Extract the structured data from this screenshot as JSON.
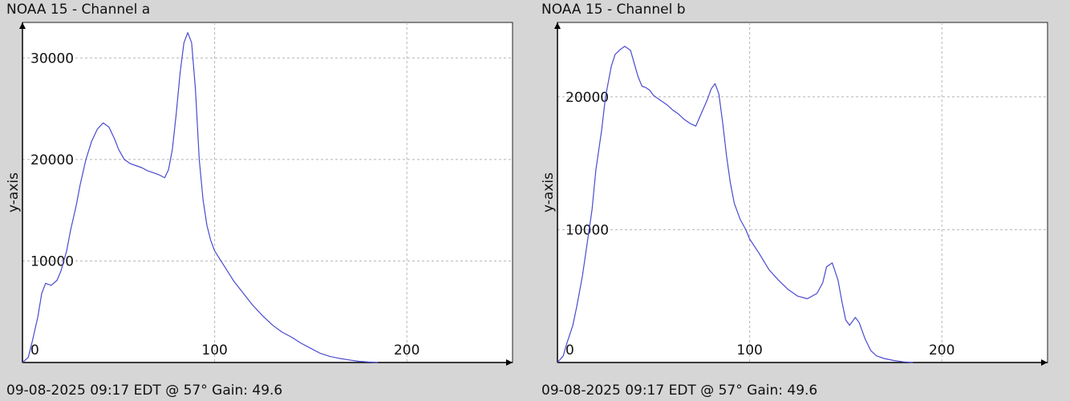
{
  "chart_data": [
    {
      "type": "line",
      "title": "NOAA 15 - Channel a",
      "footer": "09-08-2025 09:17 EDT @ 57° Gain: 49.6",
      "ylabel": "y-axis",
      "xlabel": "",
      "xlim": [
        0,
        255
      ],
      "ylim": [
        0,
        33500
      ],
      "xticks": [
        0,
        100,
        200
      ],
      "xtick_labels": [
        "0",
        "100",
        "200"
      ],
      "yticks": [
        10000,
        20000,
        30000
      ],
      "ytick_labels": [
        "10000",
        "20000",
        "30000"
      ],
      "grid": true,
      "line_color": "#4a4ad0",
      "series": [
        {
          "x": [
            0,
            3,
            5,
            8,
            10,
            12,
            15,
            18,
            20,
            23,
            25,
            28,
            30,
            33,
            36,
            39,
            42,
            45,
            48,
            50,
            53,
            56,
            59,
            62,
            65,
            68,
            71,
            74,
            76,
            78,
            80,
            82,
            84,
            86,
            88,
            90,
            92,
            94,
            96,
            98,
            100,
            105,
            110,
            115,
            120,
            125,
            130,
            135,
            140,
            145,
            150,
            155,
            160,
            165,
            170,
            175,
            180,
            185
          ],
          "y": [
            0,
            500,
            2000,
            4500,
            6800,
            7800,
            7600,
            8100,
            9000,
            11000,
            13000,
            15500,
            17500,
            20000,
            21800,
            23000,
            23600,
            23200,
            22000,
            21000,
            20000,
            19600,
            19400,
            19200,
            18900,
            18700,
            18500,
            18200,
            19000,
            21000,
            24500,
            28500,
            31500,
            32500,
            31500,
            27000,
            20000,
            16000,
            13500,
            12000,
            11000,
            9500,
            8000,
            6800,
            5600,
            4600,
            3700,
            3000,
            2500,
            1900,
            1400,
            900,
            600,
            400,
            250,
            120,
            50,
            0
          ]
        }
      ]
    },
    {
      "type": "line",
      "title": "NOAA 15 - Channel b",
      "footer": "09-08-2025 09:17 EDT @ 57° Gain: 49.6",
      "ylabel": "y-axis",
      "xlabel": "",
      "xlim": [
        0,
        255
      ],
      "ylim": [
        0,
        25600
      ],
      "xticks": [
        0,
        100,
        200
      ],
      "xtick_labels": [
        "0",
        "100",
        "200"
      ],
      "yticks": [
        10000,
        20000
      ],
      "ytick_labels": [
        "10000",
        "20000"
      ],
      "grid": true,
      "line_color": "#4a4ad0",
      "series": [
        {
          "x": [
            0,
            3,
            5,
            8,
            10,
            13,
            15,
            18,
            20,
            23,
            25,
            28,
            30,
            33,
            35,
            38,
            40,
            42,
            44,
            46,
            48,
            50,
            52,
            54,
            57,
            60,
            63,
            66,
            69,
            72,
            75,
            78,
            80,
            82,
            84,
            86,
            88,
            90,
            92,
            95,
            98,
            100,
            105,
            110,
            115,
            120,
            125,
            130,
            135,
            138,
            140,
            143,
            146,
            148,
            150,
            152,
            155,
            157,
            160,
            163,
            166,
            170,
            175,
            180,
            185
          ],
          "y": [
            0,
            500,
            1500,
            2800,
            4200,
            6500,
            8500,
            11500,
            14500,
            17500,
            20000,
            22300,
            23200,
            23600,
            23800,
            23500,
            22500,
            21500,
            20800,
            20700,
            20500,
            20100,
            19900,
            19700,
            19400,
            19000,
            18700,
            18300,
            18000,
            17800,
            18800,
            19800,
            20600,
            21000,
            20200,
            18000,
            15500,
            13500,
            12000,
            10800,
            10000,
            9300,
            8200,
            7000,
            6200,
            5500,
            5000,
            4800,
            5200,
            6000,
            7200,
            7500,
            6200,
            4600,
            3200,
            2800,
            3400,
            3000,
            1800,
            900,
            500,
            300,
            150,
            50,
            0
          ]
        }
      ]
    }
  ]
}
